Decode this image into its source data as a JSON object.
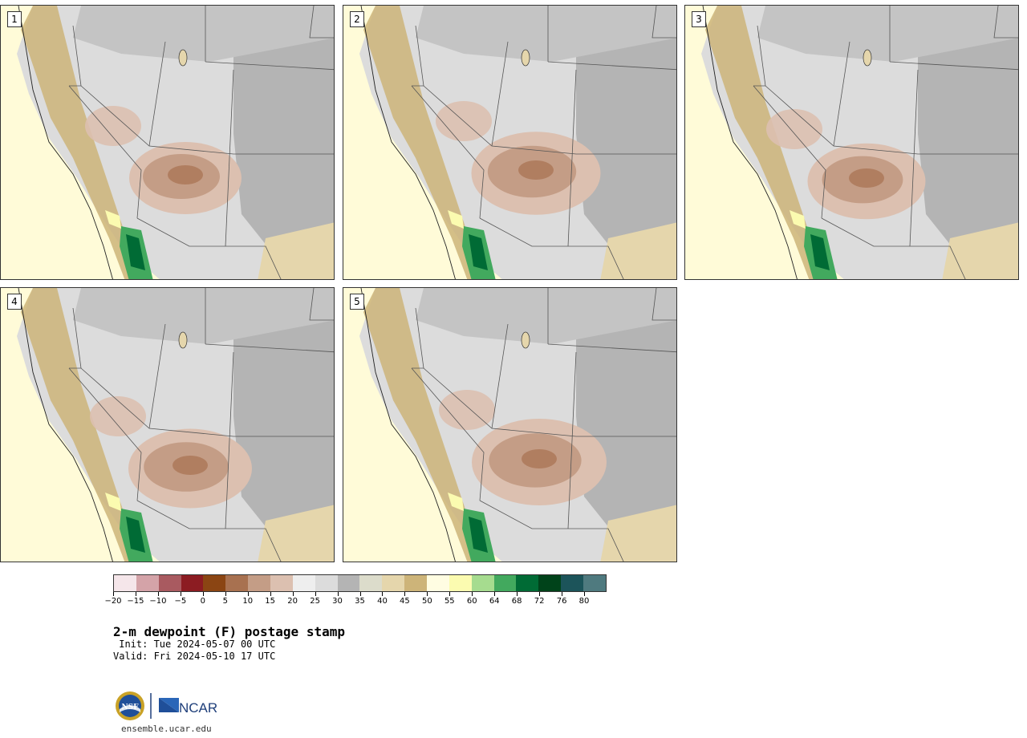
{
  "panels": [
    {
      "label": "1"
    },
    {
      "label": "2"
    },
    {
      "label": "3"
    },
    {
      "label": "4"
    },
    {
      "label": "5"
    }
  ],
  "colorbar": {
    "colors": [
      "#f5e6ea",
      "#d4a3a8",
      "#a95a60",
      "#8c1c22",
      "#8b4513",
      "#a87150",
      "#c49d86",
      "#dcc0b0",
      "#eeeeee",
      "#dcdcdc",
      "#b4b4b4",
      "#dcdccb",
      "#e5d6ac",
      "#cdb479",
      "#fffde2",
      "#fbfbb0",
      "#a6dc8f",
      "#42a95e",
      "#006b35",
      "#00431a",
      "#1c545a",
      "#4f7a7f"
    ],
    "tick_labels": [
      "−20",
      "−15",
      "−10",
      "−5",
      "0",
      "5",
      "10",
      "15",
      "20",
      "25",
      "30",
      "35",
      "40",
      "45",
      "50",
      "55",
      "60",
      "64",
      "68",
      "72",
      "76",
      "80"
    ]
  },
  "title": "2-m dewpoint (F) postage stamp",
  "init": " Init: Tue 2024-05-07 00 UTC",
  "valid": "Valid: Fri 2024-05-10 17 UTC",
  "logo": {
    "nsf_text": "NSF",
    "ncar_text": "NCAR"
  },
  "url": "ensemble.ucar.edu"
}
